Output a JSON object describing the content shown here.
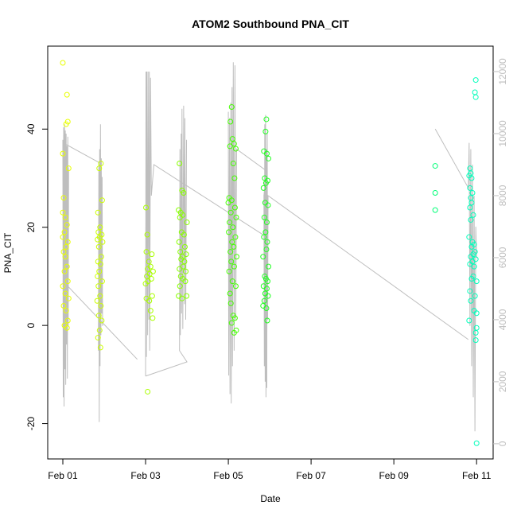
{
  "chart_data": {
    "type": "scatter",
    "title": "ATOM2 Southbound PNA_CIT",
    "x_label": "Date",
    "y_label": "PNA_CIT",
    "xlim": [
      0.635,
      11.4
    ],
    "xticks": [
      {
        "value": 1,
        "label": "Feb 01"
      },
      {
        "value": 3,
        "label": "Feb 03"
      },
      {
        "value": 5,
        "label": "Feb 05"
      },
      {
        "value": 7,
        "label": "Feb 07"
      },
      {
        "value": 9,
        "label": "Feb 09"
      },
      {
        "value": 11,
        "label": "Feb 11"
      }
    ],
    "ylim": [
      -27.2,
      56.9
    ],
    "yticks": [
      -20,
      0,
      20,
      40
    ],
    "y2lim": [
      -490,
      12820
    ],
    "y2ticks": [
      0,
      2000,
      4000,
      6000,
      8000,
      10000,
      12000
    ],
    "y2_color": "#bebebe",
    "series": [
      {
        "color": "#e8ff00",
        "x": [
          1.0,
          1.1,
          1.12,
          1.08,
          1.0,
          1.14,
          1.02,
          1.0,
          1.06,
          1.1,
          1.04,
          1.0,
          1.12,
          1.08,
          1.02,
          1.06,
          1.1,
          1.04,
          1.12,
          1.0,
          1.06,
          1.14,
          1.02,
          1.08,
          1.12,
          1.04,
          1.1
        ],
        "values": [
          53.5,
          47,
          41.5,
          41,
          35,
          32,
          26,
          23,
          22,
          20.5,
          19,
          18,
          17,
          16,
          15,
          14,
          12,
          11,
          9,
          8,
          6.5,
          5.5,
          4,
          3,
          1,
          0,
          -0.5
        ]
      },
      {
        "color": "#ccff00",
        "x": [
          1.92,
          1.88,
          1.95,
          1.85,
          1.9,
          1.86,
          1.94,
          1.89,
          1.84,
          1.96,
          1.87,
          1.93,
          1.85,
          1.91,
          1.88,
          1.84,
          1.95,
          1.86,
          1.9,
          1.83,
          1.92,
          1.87,
          1.94,
          1.89,
          1.85,
          1.91
        ],
        "values": [
          33,
          32,
          25.5,
          23,
          20,
          19,
          18.5,
          18,
          17.5,
          17,
          16,
          14,
          13,
          12.5,
          11,
          10,
          9,
          8,
          6,
          5,
          4,
          2,
          1,
          -1,
          -2.5,
          -4.5
        ]
      },
      {
        "color": "#aaff00",
        "x": [
          3.01,
          3.04,
          3.02,
          3.15,
          3.08,
          3.12,
          3.05,
          3.18,
          3.1,
          3.03,
          3.14,
          3.06,
          3.0,
          3.16,
          3.02,
          3.09,
          3.12,
          3.17,
          3.05
        ],
        "values": [
          24,
          18.5,
          15,
          14.5,
          13,
          12,
          11.5,
          11,
          10.5,
          10,
          9.5,
          9,
          8.5,
          6,
          5.5,
          5,
          3,
          1.5,
          -13.5
        ]
      },
      {
        "color": "#88ff00",
        "x": [
          3.82,
          3.88,
          3.92,
          3.8,
          3.85,
          3.9,
          3.83,
          4.0,
          3.87,
          3.93,
          3.81,
          3.95,
          3.84,
          3.98,
          3.89,
          3.86,
          3.94,
          3.91,
          3.82,
          3.97,
          3.85,
          3.9,
          3.96,
          3.83,
          3.8,
          3.99,
          3.88
        ],
        "values": [
          33,
          27.5,
          27,
          23.5,
          23,
          22.5,
          22,
          21,
          19,
          18.5,
          17,
          16,
          15,
          14.5,
          14,
          13.5,
          13,
          12,
          11.5,
          11,
          10,
          9.5,
          9,
          8,
          6,
          6,
          5.5
        ]
      },
      {
        "color": "#44ff00",
        "x": [
          5.08,
          5.05,
          5.1,
          5.14,
          5.04,
          5.18,
          5.12,
          5.15,
          5.02,
          5.08,
          5.0,
          5.16,
          5.06,
          5.19,
          5.03,
          5.11,
          5.01,
          5.17,
          5.09,
          5.13,
          5.05,
          5.2,
          5.07,
          5.14,
          5.02,
          5.1,
          5.18,
          5.04,
          5.06,
          5.12,
          5.16,
          5.08,
          5.19,
          5.14
        ],
        "values": [
          44.5,
          41.5,
          38,
          37,
          36.5,
          36,
          33,
          30,
          26,
          25.5,
          25,
          24,
          23,
          22,
          21,
          20,
          19,
          18,
          17,
          16,
          15,
          14,
          13,
          12,
          11,
          9,
          8,
          6.5,
          4.5,
          2,
          1.5,
          0.5,
          -1,
          -1.5
        ]
      },
      {
        "color": "#22ff22",
        "x": [
          5.92,
          5.9,
          5.86,
          5.93,
          5.97,
          5.88,
          5.95,
          5.91,
          5.85,
          5.89,
          5.96,
          5.87,
          5.93,
          5.9,
          5.86,
          5.94,
          5.92,
          5.84,
          5.97,
          5.88,
          5.91,
          5.95,
          5.85,
          5.93,
          5.89,
          5.96,
          5.87,
          5.84,
          5.92,
          5.94
        ],
        "values": [
          42,
          39.5,
          35.5,
          35,
          34,
          30,
          29.5,
          29,
          28,
          25,
          24.5,
          22,
          21,
          19,
          18,
          17,
          15.5,
          14,
          12,
          10,
          9.5,
          9,
          8,
          7.5,
          6.5,
          6,
          5,
          4,
          3.5,
          1
        ]
      },
      {
        "color": "#00ff77",
        "x": [
          10.0,
          10.0,
          10.0
        ],
        "values": [
          32.5,
          27,
          23.5
        ]
      },
      {
        "color": "#00ffbb",
        "x": [
          10.98,
          10.96,
          10.98,
          10.84,
          10.86,
          10.82,
          10.88,
          10.84,
          10.9,
          10.86,
          10.88,
          10.84,
          10.92,
          10.86,
          10.82,
          10.9,
          10.94,
          10.88,
          10.96,
          10.92,
          10.86,
          10.98,
          10.9,
          10.84,
          10.94,
          10.92,
          10.88,
          11.0,
          10.84,
          10.96,
          10.86,
          10.94,
          11.0,
          10.82,
          11.0,
          10.98,
          10.98,
          11.0
        ],
        "values": [
          50,
          47.5,
          46.5,
          32,
          31,
          30.5,
          30,
          28,
          27,
          26,
          25,
          24,
          22.5,
          21.5,
          18,
          17,
          16.5,
          16,
          15,
          14.5,
          14,
          13.5,
          13,
          12.5,
          12,
          10,
          9.5,
          9,
          7,
          6,
          5,
          3,
          2.5,
          1,
          -0.5,
          -1.5,
          -3,
          -24
        ]
      },
      {
        "type": "line",
        "axis": "y2",
        "color": "#bebebe",
        "x": [
          1.0,
          1.01,
          1.02,
          1.03,
          1.04,
          1.05,
          1.06,
          1.07,
          1.08,
          1.09,
          1.1,
          1.11,
          1.12,
          1.13,
          1.14,
          1.05,
          1.9,
          1.86,
          1.87,
          1.88,
          1.89,
          1.9,
          1.91,
          1.92,
          1.93,
          1.94,
          1.95,
          1.96,
          null,
          1.0,
          2.8,
          null,
          3.0,
          4.0,
          3.82,
          3.83,
          3.84,
          3.86,
          3.87,
          3.88,
          3.9,
          3.92,
          3.94,
          3.95,
          3.97,
          3.99,
          null,
          3.0,
          3.01,
          3.02,
          3.03,
          3.05,
          3.06,
          3.08,
          3.09,
          3.1,
          3.12,
          3.14,
          3.2,
          5.92,
          null,
          5.0,
          5.01,
          5.03,
          5.04,
          5.06,
          5.07,
          5.09,
          5.1,
          5.12,
          5.14,
          5.16,
          5.18,
          5.2,
          5.92,
          5.86,
          5.87,
          5.88,
          5.89,
          5.9,
          5.91,
          5.92,
          5.93,
          5.94,
          5.95,
          5.96,
          10.8,
          null,
          10.0,
          10.8,
          10.82,
          10.84,
          10.86,
          10.88,
          10.9,
          10.92,
          10.94,
          10.96,
          10.98,
          11.0
        ],
        "values": [
          9800,
          1500,
          10200,
          1200,
          10300,
          2400,
          10100,
          1900,
          10000,
          3200,
          9600,
          2100,
          9900,
          3800,
          8800,
          9670,
          9050,
          3000,
          9000,
          700,
          9500,
          2500,
          10300,
          3500,
          9200,
          4200,
          8600,
          3800,
          null,
          5250,
          2720,
          null,
          2180,
          2640,
          3000,
          9500,
          3500,
          10000,
          4200,
          10800,
          3700,
          10900,
          4500,
          10500,
          4000,
          9800,
          null,
          2180,
          12000,
          2800,
          12000,
          3500,
          12000,
          4000,
          12000,
          3000,
          11800,
          8000,
          9000,
          6670,
          null,
          10700,
          2200,
          10500,
          1600,
          11000,
          1300,
          11500,
          2500,
          12300,
          3000,
          12200,
          4000,
          9500,
          8800,
          8000,
          2500,
          10300,
          2000,
          10600,
          1500,
          9500,
          1800,
          10000,
          4000,
          8000,
          3360,
          null,
          10150,
          8250,
          9700,
          3800,
          9500,
          2500,
          9000,
          1500,
          8000,
          400,
          7000,
          6000
        ]
      }
    ]
  }
}
